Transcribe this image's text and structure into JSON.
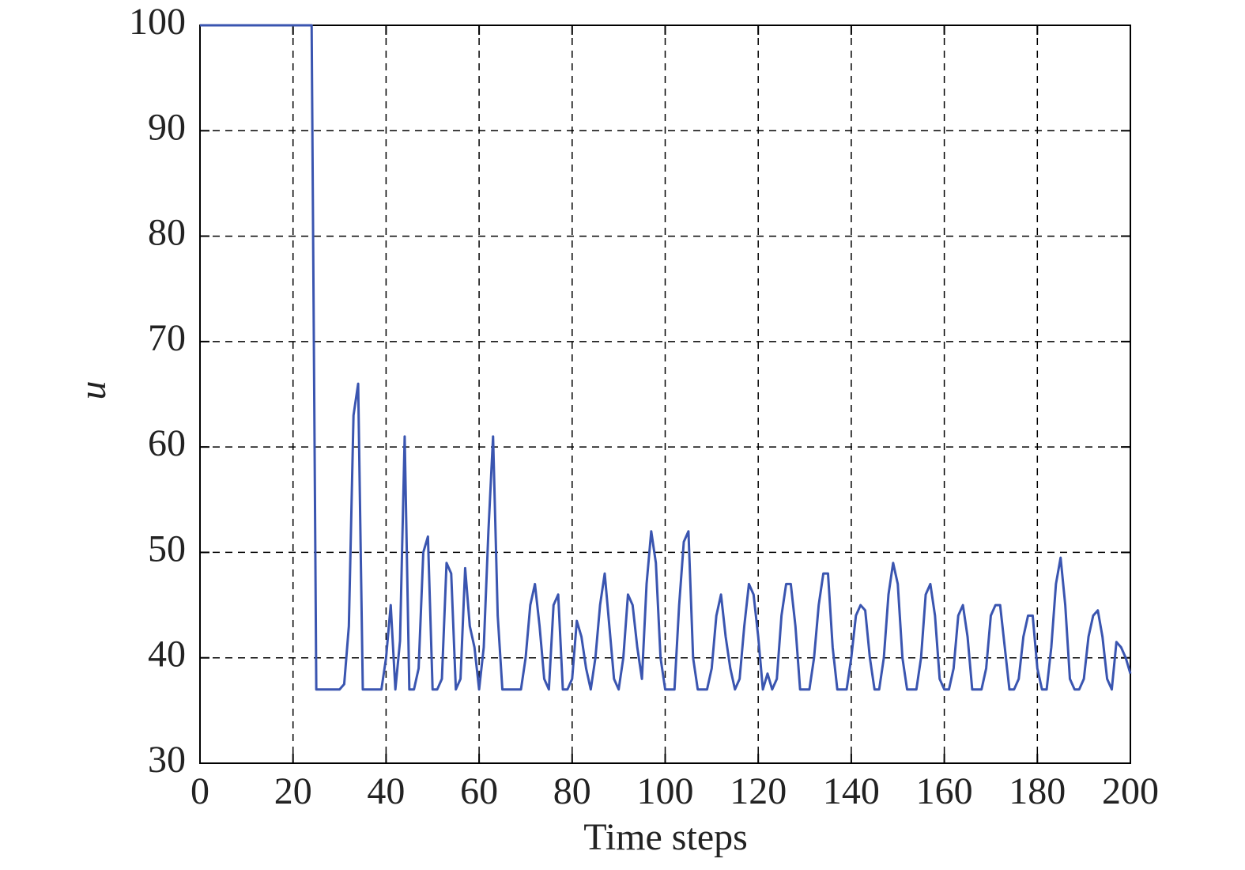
{
  "chart_data": {
    "type": "line",
    "xlabel": "Time steps",
    "ylabel": "u",
    "x": [
      0,
      1,
      2,
      3,
      4,
      5,
      6,
      7,
      8,
      9,
      10,
      11,
      12,
      13,
      14,
      15,
      16,
      17,
      18,
      19,
      20,
      21,
      22,
      23,
      24,
      25,
      26,
      27,
      28,
      29,
      30,
      31,
      32,
      33,
      34,
      35,
      36,
      37,
      38,
      39,
      40,
      41,
      42,
      43,
      44,
      45,
      46,
      47,
      48,
      49,
      50,
      51,
      52,
      53,
      54,
      55,
      56,
      57,
      58,
      59,
      60,
      61,
      62,
      63,
      64,
      65,
      66,
      67,
      68,
      69,
      70,
      71,
      72,
      73,
      74,
      75,
      76,
      77,
      78,
      79,
      80,
      81,
      82,
      83,
      84,
      85,
      86,
      87,
      88,
      89,
      90,
      91,
      92,
      93,
      94,
      95,
      96,
      97,
      98,
      99,
      100,
      101,
      102,
      103,
      104,
      105,
      106,
      107,
      108,
      109,
      110,
      111,
      112,
      113,
      114,
      115,
      116,
      117,
      118,
      119,
      120,
      121,
      122,
      123,
      124,
      125,
      126,
      127,
      128,
      129,
      130,
      131,
      132,
      133,
      134,
      135,
      136,
      137,
      138,
      139,
      140,
      141,
      142,
      143,
      144,
      145,
      146,
      147,
      148,
      149,
      150,
      151,
      152,
      153,
      154,
      155,
      156,
      157,
      158,
      159,
      160,
      161,
      162,
      163,
      164,
      165,
      166,
      167,
      168,
      169,
      170,
      171,
      172,
      173,
      174,
      175,
      176,
      177,
      178,
      179,
      180,
      181,
      182,
      183,
      184,
      185,
      186,
      187,
      188,
      189,
      190,
      191,
      192,
      193,
      194,
      195,
      196,
      197,
      198,
      199,
      200
    ],
    "series": [
      {
        "color": "#3a55b0",
        "values": [
          100,
          100,
          100,
          100,
          100,
          100,
          100,
          100,
          100,
          100,
          100,
          100,
          100,
          100,
          100,
          100,
          100,
          100,
          100,
          100,
          100,
          100,
          100,
          100,
          100,
          37,
          37,
          37,
          37,
          37,
          37,
          37.5,
          43,
          63,
          66,
          37,
          37,
          37,
          37,
          37,
          40,
          45,
          37,
          41.6,
          61,
          37,
          37,
          39,
          50,
          51.5,
          37,
          37,
          38,
          49,
          48,
          37,
          38,
          48.5,
          43,
          41,
          37,
          41,
          52,
          61,
          44,
          37,
          37,
          37,
          37,
          37,
          40,
          45,
          47,
          43,
          38,
          37,
          45,
          46,
          37,
          37,
          38,
          43.5,
          42,
          39,
          37,
          40,
          45,
          48,
          43,
          38,
          37,
          40,
          46,
          45,
          41,
          38,
          47,
          52,
          49,
          40,
          37,
          37,
          37,
          45,
          51,
          52,
          40,
          37,
          37,
          37,
          39,
          44,
          46,
          42,
          39,
          37,
          38,
          43,
          47,
          46,
          42,
          37,
          38.5,
          37,
          38,
          44,
          47,
          47,
          43,
          37,
          37,
          37,
          40,
          45,
          48,
          48,
          41,
          37,
          37,
          37,
          40,
          44,
          45,
          44.5,
          40,
          37,
          37,
          40,
          46,
          49,
          47,
          40,
          37,
          37,
          37,
          40,
          46,
          47,
          44,
          38,
          37,
          37,
          39,
          44,
          45,
          42,
          37,
          37,
          37,
          39,
          44,
          45,
          45,
          41,
          37,
          37,
          38,
          42,
          44,
          44,
          39,
          37,
          37,
          41,
          47,
          49.5,
          45,
          38,
          37,
          37,
          38,
          42,
          44,
          44.5,
          42,
          38,
          37,
          41.5,
          41,
          40,
          38.5
        ]
      }
    ],
    "xlim": [
      0,
      200
    ],
    "xticks": [
      0,
      20,
      40,
      60,
      80,
      100,
      120,
      140,
      160,
      180,
      200
    ],
    "ylim": [
      30,
      100
    ],
    "yticks": [
      30,
      40,
      50,
      60,
      70,
      80,
      90,
      100
    ],
    "grid": true
  }
}
